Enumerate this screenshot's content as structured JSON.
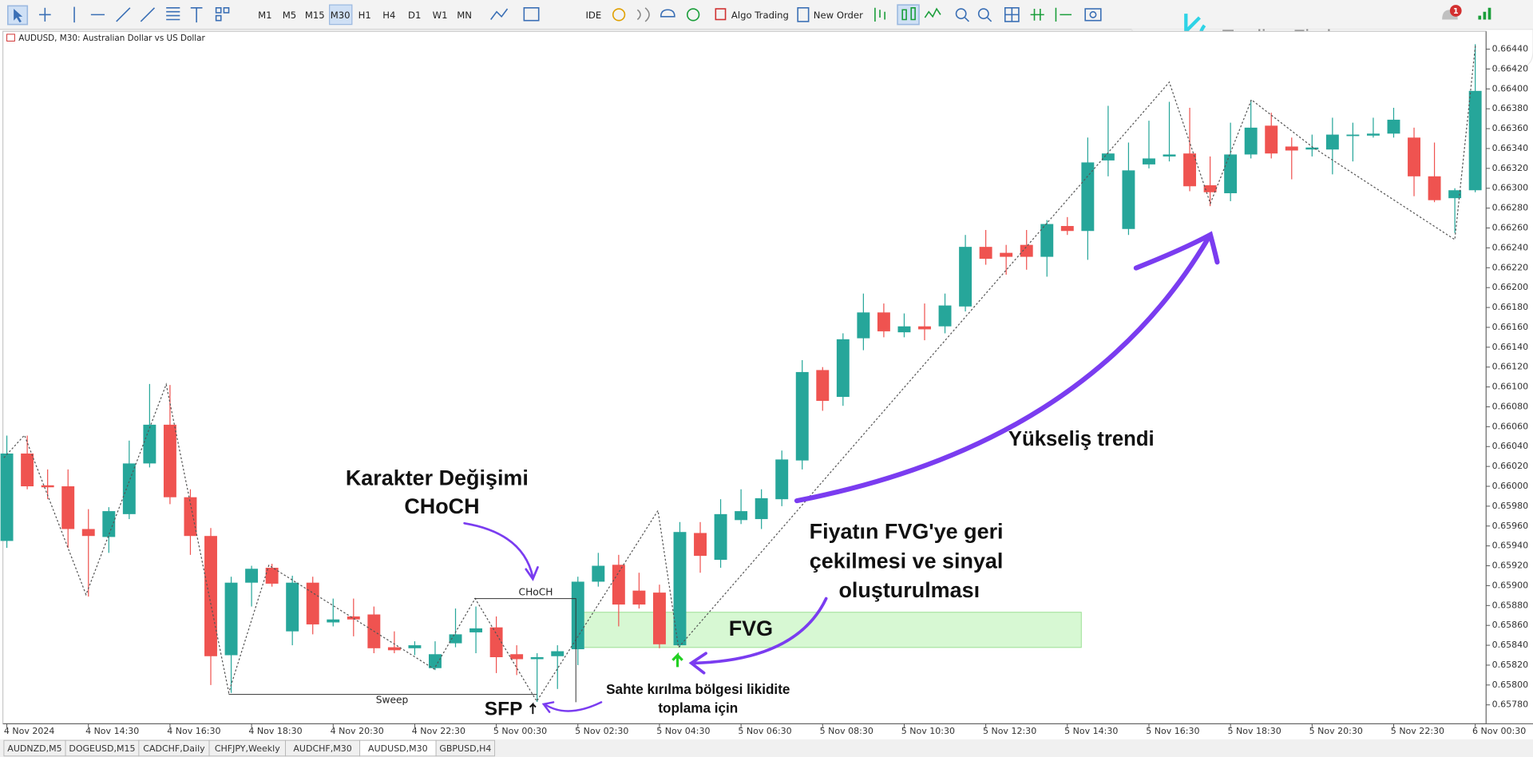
{
  "ui": {
    "toolbar": {
      "timeframes": [
        "M1",
        "M5",
        "M15",
        "M30",
        "H1",
        "H4",
        "D1",
        "W1",
        "MN"
      ],
      "active_timeframe": "M30",
      "ide": "IDE",
      "algo_trading": "Algo Trading",
      "new_order": "New Order",
      "notification_count": "1"
    },
    "logo": "Trading Finder",
    "tabs": [
      "AUDNZD,M5",
      "DOGEUSD,M15",
      "CADCHF,Daily",
      "CHFJPY,Weekly",
      "AUDCHF,M30",
      "AUDUSD,M30",
      "GBPUSD,H4"
    ],
    "active_tab": "AUDUSD,M30"
  },
  "chart_data": {
    "type": "candlestick",
    "title": "AUDUSD, M30:  Australian Dollar vs US Dollar",
    "up_color": "#26a69a",
    "down_color": "#ef5350",
    "categories": [
      "4 Nov 2024",
      null,
      null,
      null,
      "4 Nov 14:30",
      null,
      null,
      null,
      "4 Nov 16:30",
      null,
      null,
      null,
      "4 Nov 18:30",
      null,
      null,
      null,
      "4 Nov 20:30",
      null,
      null,
      null,
      "4 Nov 22:30",
      null,
      null,
      null,
      "5 Nov 00:30",
      null,
      null,
      null,
      "5 Nov 02:30",
      null,
      null,
      null,
      "5 Nov 04:30",
      null,
      null,
      null,
      "5 Nov 06:30",
      null,
      null,
      null,
      "5 Nov 08:30",
      null,
      null,
      null,
      "5 Nov 10:30",
      null,
      null,
      null,
      "5 Nov 12:30",
      null,
      null,
      null,
      "5 Nov 14:30",
      null,
      null,
      null,
      "5 Nov 16:30",
      null,
      null,
      null,
      "5 Nov 18:30",
      null,
      null,
      null,
      "5 Nov 20:30",
      null,
      null,
      null,
      "5 Nov 22:30",
      null,
      null,
      null,
      "6 Nov 00:30"
    ],
    "open": [
      0.65945,
      0.66033,
      0.66001,
      0.66,
      0.65957,
      0.65949,
      0.65972,
      0.66023,
      0.66062,
      0.65989,
      0.6595,
      0.6583,
      0.65903,
      0.65918,
      0.65854,
      0.65903,
      0.65863,
      0.65869,
      0.65871,
      0.65838,
      0.65837,
      0.65817,
      0.65842,
      0.65853,
      0.65858,
      0.65831,
      0.65826,
      0.65829,
      0.65836,
      0.65904,
      0.65921,
      0.65895,
      0.65893,
      0.6584,
      0.65953,
      0.65926,
      0.65966,
      0.65967,
      0.65987,
      0.66026,
      0.66117,
      0.6609,
      0.66149,
      0.66175,
      0.66155,
      0.66161,
      0.66161,
      0.66181,
      0.66241,
      0.66235,
      0.66243,
      0.66231,
      0.66262,
      0.66257,
      0.66328,
      0.66259,
      0.66324,
      0.66332,
      0.66335,
      0.66303,
      0.66295,
      0.66334,
      0.66363,
      0.66342,
      0.66339,
      0.66339,
      0.66353,
      0.66353,
      0.66355,
      0.66351,
      0.66312,
      0.6629,
      0.66298
    ],
    "close": [
      0.66033,
      0.66,
      0.65999,
      0.65957,
      0.6595,
      0.65975,
      0.66023,
      0.66062,
      0.65989,
      0.6595,
      0.65829,
      0.65903,
      0.65917,
      0.65902,
      0.65903,
      0.65861,
      0.65866,
      0.65866,
      0.65837,
      0.65835,
      0.6584,
      0.65831,
      0.65851,
      0.65857,
      0.65828,
      0.65826,
      0.65828,
      0.65834,
      0.65904,
      0.6592,
      0.65881,
      0.65881,
      0.65841,
      0.65954,
      0.6593,
      0.65972,
      0.65975,
      0.65988,
      0.66027,
      0.66115,
      0.66086,
      0.66148,
      0.66175,
      0.66156,
      0.66161,
      0.66158,
      0.66182,
      0.66241,
      0.66229,
      0.66231,
      0.66231,
      0.66264,
      0.66257,
      0.66326,
      0.66335,
      0.66318,
      0.6633,
      0.66334,
      0.66302,
      0.66296,
      0.66334,
      0.66361,
      0.66335,
      0.66338,
      0.66341,
      0.66354,
      0.66354,
      0.66355,
      0.66369,
      0.66312,
      0.66288,
      0.66298,
      0.66398
    ],
    "high": [
      0.66051,
      0.66051,
      0.66017,
      0.66017,
      0.65977,
      0.65979,
      0.66046,
      0.66103,
      0.66102,
      0.65997,
      0.65958,
      0.65909,
      0.6592,
      0.65922,
      0.6591,
      0.65909,
      0.65887,
      0.65887,
      0.65879,
      0.65854,
      0.65844,
      0.65844,
      0.65877,
      0.65879,
      0.65869,
      0.6584,
      0.65832,
      0.6584,
      0.65909,
      0.65933,
      0.65931,
      0.65913,
      0.65901,
      0.65964,
      0.65964,
      0.65987,
      0.65997,
      0.65997,
      0.66036,
      0.66127,
      0.6612,
      0.66154,
      0.66194,
      0.66184,
      0.66174,
      0.66184,
      0.66194,
      0.66253,
      0.66258,
      0.66243,
      0.66258,
      0.66268,
      0.66271,
      0.66351,
      0.66383,
      0.66346,
      0.66368,
      0.66387,
      0.66381,
      0.66332,
      0.66366,
      0.66389,
      0.66376,
      0.66351,
      0.66354,
      0.66371,
      0.66366,
      0.66371,
      0.66381,
      0.66361,
      0.66346,
      0.663,
      0.66445
    ],
    "low": [
      0.65938,
      0.65997,
      0.65987,
      0.65938,
      0.65889,
      0.65933,
      0.65967,
      0.66019,
      0.65982,
      0.65931,
      0.658,
      0.65792,
      0.65879,
      0.65899,
      0.6584,
      0.65851,
      0.65859,
      0.65849,
      0.65832,
      0.65832,
      0.6583,
      0.65815,
      0.65838,
      0.65832,
      0.65812,
      0.6581,
      0.65783,
      0.65796,
      0.6582,
      0.65899,
      0.65859,
      0.65877,
      0.65837,
      0.65838,
      0.65913,
      0.65918,
      0.65962,
      0.65957,
      0.6598,
      0.66017,
      0.66076,
      0.66081,
      0.66137,
      0.6615,
      0.6615,
      0.66147,
      0.66154,
      0.66176,
      0.66223,
      0.66213,
      0.66218,
      0.66211,
      0.66253,
      0.66228,
      0.66312,
      0.66253,
      0.6632,
      0.66327,
      0.66297,
      0.66282,
      0.66287,
      0.6633,
      0.6633,
      0.66309,
      0.66332,
      0.66314,
      0.66327,
      0.66351,
      0.66351,
      0.66292,
      0.66286,
      0.66255,
      0.66296
    ],
    "ylim": [
      0.65761,
      0.66457
    ],
    "yticks": [
      {
        "value": 0.6578,
        "label": "0.65780"
      },
      {
        "value": 0.658,
        "label": "0.65800"
      },
      {
        "value": 0.6582,
        "label": "0.65820"
      },
      {
        "value": 0.6584,
        "label": "0.65840"
      },
      {
        "value": 0.6586,
        "label": "0.65860"
      },
      {
        "value": 0.6588,
        "label": "0.65880"
      },
      {
        "value": 0.659,
        "label": "0.65900"
      },
      {
        "value": 0.6592,
        "label": "0.65920"
      },
      {
        "value": 0.6594,
        "label": "0.65940"
      },
      {
        "value": 0.6596,
        "label": "0.65960"
      },
      {
        "value": 0.6598,
        "label": "0.65980"
      },
      {
        "value": 0.66,
        "label": "0.66000"
      },
      {
        "value": 0.6602,
        "label": "0.66020"
      },
      {
        "value": 0.6604,
        "label": "0.66040"
      },
      {
        "value": 0.6606,
        "label": "0.66060"
      },
      {
        "value": 0.6608,
        "label": "0.66080"
      },
      {
        "value": 0.661,
        "label": "0.66100"
      },
      {
        "value": 0.6612,
        "label": "0.66120"
      },
      {
        "value": 0.6614,
        "label": "0.66140"
      },
      {
        "value": 0.6616,
        "label": "0.66160"
      },
      {
        "value": 0.6618,
        "label": "0.66180"
      },
      {
        "value": 0.662,
        "label": "0.66200"
      },
      {
        "value": 0.6622,
        "label": "0.66220"
      },
      {
        "value": 0.6624,
        "label": "0.66240"
      },
      {
        "value": 0.6626,
        "label": "0.66260"
      },
      {
        "value": 0.6628,
        "label": "0.66280"
      },
      {
        "value": 0.663,
        "label": "0.66300"
      },
      {
        "value": 0.6632,
        "label": "0.66320"
      },
      {
        "value": 0.6634,
        "label": "0.66340"
      },
      {
        "value": 0.6636,
        "label": "0.66360"
      },
      {
        "value": 0.6638,
        "label": "0.66380"
      },
      {
        "value": 0.664,
        "label": "0.66400"
      },
      {
        "value": 0.6642,
        "label": "0.66420"
      },
      {
        "value": 0.6644,
        "label": "0.66440"
      }
    ],
    "grid": false,
    "annotations": {
      "choch_title": [
        "Karakter Değişimi",
        "CHoCH"
      ],
      "choch_line": "CHoCH",
      "sweep_line": "Sweep",
      "sfp": "SFP",
      "fvg": "FVG",
      "pullback": [
        "Fiyatın FVG'ye geri",
        "çekilmesi ve sinyal",
        "oluşturulması"
      ],
      "false_break": [
        "Sahte kırılma bölgesi likidite",
        "toplama için"
      ],
      "trend": "Yükseliş trendi"
    }
  }
}
